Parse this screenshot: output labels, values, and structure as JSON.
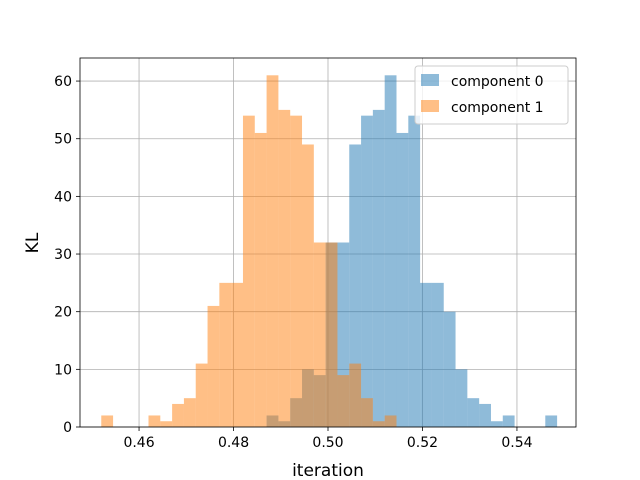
{
  "chart_data": {
    "type": "histogram",
    "xlabel": "iteration",
    "ylabel": "KL",
    "xlim": [
      0.4475,
      0.5525
    ],
    "ylim": [
      0,
      64
    ],
    "xticks": [
      0.46,
      0.48,
      0.5,
      0.52,
      0.54
    ],
    "xtick_labels": [
      "0.46",
      "0.48",
      "0.50",
      "0.52",
      "0.54"
    ],
    "yticks": [
      0,
      10,
      20,
      30,
      40,
      50,
      60
    ],
    "ytick_labels": [
      "0",
      "10",
      "20",
      "30",
      "40",
      "50",
      "60"
    ],
    "grid": true,
    "legend_position": "upper-right",
    "series": [
      {
        "name": "component 0",
        "color": "#1f77b4",
        "alpha": 0.5,
        "bins": [
          {
            "x0": 0.487,
            "x1": 0.4895,
            "count": 2
          },
          {
            "x0": 0.4895,
            "x1": 0.492,
            "count": 1
          },
          {
            "x0": 0.492,
            "x1": 0.4945,
            "count": 5
          },
          {
            "x0": 0.4945,
            "x1": 0.497,
            "count": 10
          },
          {
            "x0": 0.497,
            "x1": 0.4995,
            "count": 9
          },
          {
            "x0": 0.4995,
            "x1": 0.502,
            "count": 32
          },
          {
            "x0": 0.502,
            "x1": 0.5045,
            "count": 32
          },
          {
            "x0": 0.5045,
            "x1": 0.507,
            "count": 49
          },
          {
            "x0": 0.507,
            "x1": 0.5095,
            "count": 54
          },
          {
            "x0": 0.5095,
            "x1": 0.512,
            "count": 55
          },
          {
            "x0": 0.512,
            "x1": 0.5145,
            "count": 61
          },
          {
            "x0": 0.5145,
            "x1": 0.517,
            "count": 51
          },
          {
            "x0": 0.517,
            "x1": 0.5195,
            "count": 54
          },
          {
            "x0": 0.5195,
            "x1": 0.522,
            "count": 25
          },
          {
            "x0": 0.522,
            "x1": 0.5245,
            "count": 25
          },
          {
            "x0": 0.5245,
            "x1": 0.527,
            "count": 20
          },
          {
            "x0": 0.527,
            "x1": 0.5295,
            "count": 10
          },
          {
            "x0": 0.5295,
            "x1": 0.532,
            "count": 5
          },
          {
            "x0": 0.532,
            "x1": 0.5345,
            "count": 4
          },
          {
            "x0": 0.5345,
            "x1": 0.537,
            "count": 1
          },
          {
            "x0": 0.537,
            "x1": 0.5395,
            "count": 2
          },
          {
            "x0": 0.546,
            "x1": 0.5485,
            "count": 2
          }
        ]
      },
      {
        "name": "component 1",
        "color": "#ff7f0e",
        "alpha": 0.5,
        "bins": [
          {
            "x0": 0.452,
            "x1": 0.4545,
            "count": 2
          },
          {
            "x0": 0.462,
            "x1": 0.4645,
            "count": 2
          },
          {
            "x0": 0.4645,
            "x1": 0.467,
            "count": 1
          },
          {
            "x0": 0.467,
            "x1": 0.4695,
            "count": 4
          },
          {
            "x0": 0.4695,
            "x1": 0.472,
            "count": 5
          },
          {
            "x0": 0.472,
            "x1": 0.4745,
            "count": 11
          },
          {
            "x0": 0.4745,
            "x1": 0.477,
            "count": 21
          },
          {
            "x0": 0.477,
            "x1": 0.4795,
            "count": 25
          },
          {
            "x0": 0.4795,
            "x1": 0.482,
            "count": 25
          },
          {
            "x0": 0.482,
            "x1": 0.4845,
            "count": 54
          },
          {
            "x0": 0.4845,
            "x1": 0.487,
            "count": 51
          },
          {
            "x0": 0.487,
            "x1": 0.4895,
            "count": 61
          },
          {
            "x0": 0.4895,
            "x1": 0.492,
            "count": 55
          },
          {
            "x0": 0.492,
            "x1": 0.4945,
            "count": 54
          },
          {
            "x0": 0.4945,
            "x1": 0.497,
            "count": 49
          },
          {
            "x0": 0.497,
            "x1": 0.4995,
            "count": 32
          },
          {
            "x0": 0.4995,
            "x1": 0.502,
            "count": 32
          },
          {
            "x0": 0.502,
            "x1": 0.5045,
            "count": 9
          },
          {
            "x0": 0.5045,
            "x1": 0.507,
            "count": 11
          },
          {
            "x0": 0.507,
            "x1": 0.5095,
            "count": 5
          },
          {
            "x0": 0.5095,
            "x1": 0.512,
            "count": 1
          },
          {
            "x0": 0.512,
            "x1": 0.5145,
            "count": 2
          }
        ]
      }
    ]
  }
}
